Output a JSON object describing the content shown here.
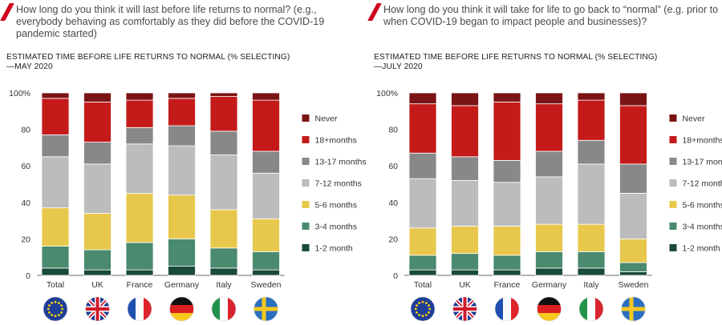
{
  "chart_data": [
    {
      "type": "bar",
      "stacked": true,
      "title": "How long do you think it will last before life returns to normal? (e.g., everybody behaving as comfortably as they did before the COVID-19 pandemic started)",
      "subtitle": "ESTIMATED TIME BEFORE LIFE RETURNS TO NORMAL (% SELECTING)—MAY 2020",
      "categories": [
        "Total",
        "UK",
        "France",
        "Germany",
        "Italy",
        "Sweden"
      ],
      "flags": [
        "eu",
        "uk",
        "france",
        "germany",
        "italy",
        "sweden"
      ],
      "y_ticks": [
        "100%",
        "80",
        "60",
        "40",
        "20",
        "0"
      ],
      "ylim": [
        0,
        100
      ],
      "legend_position": "right",
      "series": [
        {
          "name": "1-2 month",
          "color": "#1a4a3a",
          "values": [
            4,
            3,
            3,
            5,
            4,
            3
          ]
        },
        {
          "name": "3-4 months",
          "color": "#4a8a6e",
          "values": [
            12,
            11,
            15,
            15,
            11,
            10
          ]
        },
        {
          "name": "5-6 months",
          "color": "#e8c84c",
          "values": [
            21,
            20,
            27,
            24,
            21,
            18
          ]
        },
        {
          "name": "7-12 months",
          "color": "#bcbcbc",
          "values": [
            28,
            27,
            27,
            27,
            30,
            25
          ]
        },
        {
          "name": "13-17 months",
          "color": "#888888",
          "values": [
            12,
            12,
            9,
            11,
            13,
            12
          ]
        },
        {
          "name": "18+months",
          "color": "#c41a1a",
          "values": [
            20,
            22,
            15,
            15,
            19,
            28
          ]
        },
        {
          "name": "Never",
          "color": "#7b1414",
          "values": [
            3,
            5,
            4,
            3,
            2,
            4
          ]
        }
      ]
    },
    {
      "type": "bar",
      "stacked": true,
      "title": "How long do you think it will take for life to go back to “normal” (e.g. prior to when COVID-19 began to impact people and businesses)?",
      "subtitle": "ESTIMATED TIME BEFORE LIFE RETURNS TO NORMAL (% SELECTING)—JULY 2020",
      "categories": [
        "Total",
        "UK",
        "France",
        "Germany",
        "Italy",
        "Sweden"
      ],
      "flags": [
        "eu",
        "uk",
        "france",
        "germany",
        "italy",
        "sweden"
      ],
      "y_ticks": [
        "100%",
        "80",
        "60",
        "40",
        "20",
        "0"
      ],
      "ylim": [
        0,
        100
      ],
      "legend_position": "right",
      "series": [
        {
          "name": "1-2 month",
          "color": "#1a4a3a",
          "values": [
            3,
            3,
            3,
            4,
            4,
            2
          ]
        },
        {
          "name": "3-4 months",
          "color": "#4a8a6e",
          "values": [
            8,
            9,
            8,
            9,
            9,
            5
          ]
        },
        {
          "name": "5-6 months",
          "color": "#e8c84c",
          "values": [
            15,
            15,
            16,
            15,
            15,
            13
          ]
        },
        {
          "name": "7-12 months",
          "color": "#bcbcbc",
          "values": [
            27,
            25,
            24,
            26,
            33,
            25
          ]
        },
        {
          "name": "13-17 months",
          "color": "#888888",
          "values": [
            14,
            13,
            12,
            14,
            13,
            16
          ]
        },
        {
          "name": "18+months",
          "color": "#c41a1a",
          "values": [
            27,
            28,
            32,
            26,
            22,
            32
          ]
        },
        {
          "name": "Never",
          "color": "#7b1414",
          "values": [
            6,
            7,
            5,
            6,
            4,
            7
          ]
        }
      ]
    }
  ]
}
